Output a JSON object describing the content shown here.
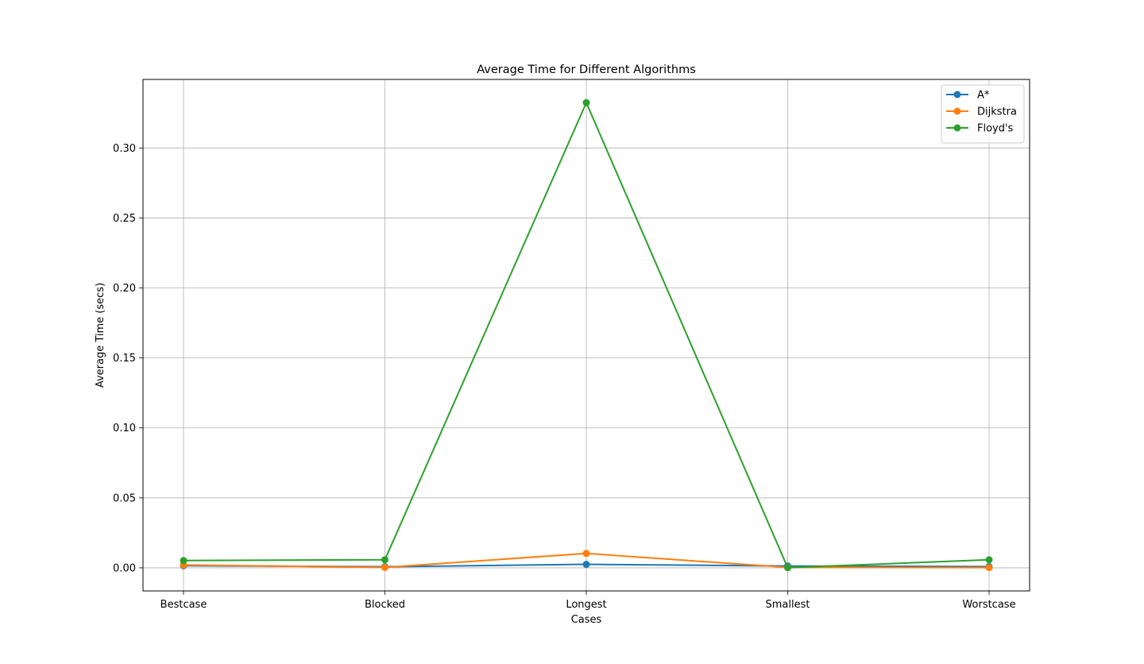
{
  "chart_data": {
    "type": "line",
    "title": "Average Time for Different Algorithms",
    "xlabel": "Cases",
    "ylabel": "Average Time (secs)",
    "categories": [
      "Bestcase",
      "Blocked",
      "Longest",
      "Smallest",
      "Worstcase"
    ],
    "ylim": [
      -0.0165,
      0.349
    ],
    "yticks": [
      0.0,
      0.05,
      0.1,
      0.15,
      0.2,
      0.25,
      0.3
    ],
    "ytick_labels": [
      "0.00",
      "0.05",
      "0.10",
      "0.15",
      "0.20",
      "0.25",
      "0.30"
    ],
    "grid": true,
    "legend_position": "top-right",
    "series": [
      {
        "name": "A*",
        "color": "#1f77b4",
        "values": [
          0.0015,
          0.0008,
          0.0025,
          0.0013,
          0.0009
        ]
      },
      {
        "name": "Dijkstra",
        "color": "#ff7f0e",
        "values": [
          0.002,
          0.0003,
          0.0103,
          0.0003,
          0.0002
        ]
      },
      {
        "name": "Floyd's",
        "color": "#2ca02c",
        "values": [
          0.0052,
          0.0058,
          0.3324,
          0.0001,
          0.0058
        ]
      }
    ]
  }
}
